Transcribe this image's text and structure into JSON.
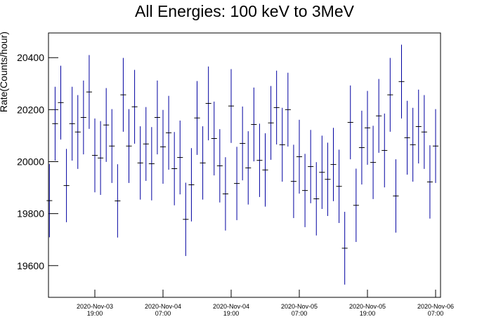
{
  "chart_data": {
    "type": "errorbar",
    "title": "All Energies:  100 keV to 3MeV",
    "y_label": "Rate(Counts/hour)",
    "color": "#0000a0",
    "x": [
      "2020-11-03 11:00",
      "2020-11-03 12:00",
      "2020-11-03 13:00",
      "2020-11-03 14:00",
      "2020-11-03 15:00",
      "2020-11-03 16:00",
      "2020-11-03 17:00",
      "2020-11-03 18:00",
      "2020-11-03 19:00",
      "2020-11-03 20:00",
      "2020-11-03 21:00",
      "2020-11-03 22:00",
      "2020-11-03 23:00",
      "2020-11-04 00:00",
      "2020-11-04 01:00",
      "2020-11-04 02:00",
      "2020-11-04 03:00",
      "2020-11-04 04:00",
      "2020-11-04 05:00",
      "2020-11-04 06:00",
      "2020-11-04 07:00",
      "2020-11-04 08:00",
      "2020-11-04 09:00",
      "2020-11-04 10:00",
      "2020-11-04 11:00",
      "2020-11-04 12:00",
      "2020-11-04 13:00",
      "2020-11-04 14:00",
      "2020-11-04 15:00",
      "2020-11-04 16:00",
      "2020-11-04 17:00",
      "2020-11-04 18:00",
      "2020-11-04 19:00",
      "2020-11-04 20:00",
      "2020-11-04 21:00",
      "2020-11-04 22:00",
      "2020-11-04 23:00",
      "2020-11-05 00:00",
      "2020-11-05 01:00",
      "2020-11-05 02:00",
      "2020-11-05 03:00",
      "2020-11-05 04:00",
      "2020-11-05 05:00",
      "2020-11-05 06:00",
      "2020-11-05 07:00",
      "2020-11-05 08:00",
      "2020-11-05 09:00",
      "2020-11-05 10:00",
      "2020-11-05 11:00",
      "2020-11-05 12:00",
      "2020-11-05 13:00",
      "2020-11-05 14:00",
      "2020-11-05 15:00",
      "2020-11-05 16:00",
      "2020-11-05 17:00",
      "2020-11-05 18:00",
      "2020-11-05 19:00",
      "2020-11-05 20:00",
      "2020-11-05 21:00",
      "2020-11-05 22:00",
      "2020-11-05 23:00",
      "2020-11-06 00:00",
      "2020-11-06 01:00",
      "2020-11-06 02:00",
      "2020-11-06 03:00",
      "2020-11-06 04:00",
      "2020-11-06 05:00",
      "2020-11-06 06:00",
      "2020-11-06 07:00"
    ],
    "values": [
      19850,
      20146,
      20227,
      19908,
      20146,
      20114,
      20170,
      20268,
      20024,
      20014,
      20141,
      20060,
      19849,
      20257,
      20060,
      20211,
      19995,
      20068,
      19992,
      20170,
      20057,
      20111,
      19973,
      20016,
      19778,
      19911,
      20168,
      19995,
      20224,
      20089,
      19984,
      19876,
      20214,
      19916,
      20070,
      19976,
      20143,
      20005,
      19968,
      20149,
      20208,
      20065,
      20200,
      19924,
      20019,
      19889,
      19981,
      19857,
      19959,
      19932,
      19989,
      19905,
      19667,
      20151,
      19832,
      20054,
      20130,
      19997,
      20176,
      20043,
      20257,
      19868,
      20308,
      20092,
      20065,
      20135,
      20114,
      19922,
      20060
    ],
    "errors": [
      141,
      142,
      142,
      141,
      142,
      142,
      142,
      142,
      142,
      142,
      142,
      142,
      141,
      142,
      142,
      142,
      141,
      142,
      141,
      142,
      142,
      142,
      141,
      142,
      141,
      141,
      142,
      141,
      142,
      142,
      141,
      141,
      142,
      141,
      142,
      141,
      142,
      141,
      141,
      142,
      142,
      142,
      142,
      141,
      142,
      141,
      141,
      141,
      141,
      141,
      141,
      141,
      140,
      142,
      141,
      142,
      142,
      141,
      142,
      142,
      142,
      141,
      142,
      142,
      142,
      142,
      142,
      141,
      142
    ],
    "xlim": [
      "2020-11-03 10:50",
      "2020-11-06 07:52"
    ],
    "xticks": [
      {
        "value": "2020-11-03 19:00",
        "label": [
          "2020-Nov-03",
          "19:00"
        ]
      },
      {
        "value": "2020-11-04 07:00",
        "label": [
          "2020-Nov-04",
          "07:00"
        ]
      },
      {
        "value": "2020-11-04 19:00",
        "label": [
          "2020-Nov-04",
          "19:00"
        ]
      },
      {
        "value": "2020-11-05 07:00",
        "label": [
          "2020-Nov-05",
          "07:00"
        ]
      },
      {
        "value": "2020-11-05 19:00",
        "label": [
          "2020-Nov-05",
          "19:00"
        ]
      },
      {
        "value": "2020-11-06 07:00",
        "label": [
          "2020-Nov-06",
          "07:00"
        ]
      }
    ],
    "ylim": [
      19478,
      20495
    ],
    "yticks": [
      19600,
      19800,
      20000,
      20200,
      20400
    ]
  }
}
